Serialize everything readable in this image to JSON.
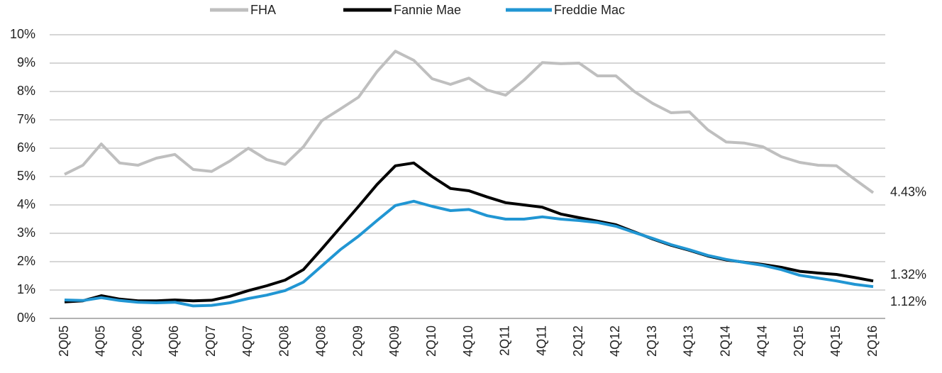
{
  "chart_data": {
    "type": "line",
    "categories": [
      "2Q05",
      null,
      "4Q05",
      null,
      "2Q06",
      null,
      "4Q06",
      null,
      "2Q07",
      null,
      "4Q07",
      null,
      "2Q08",
      null,
      "4Q08",
      null,
      "2Q09",
      null,
      "4Q09",
      null,
      "2Q10",
      null,
      "4Q10",
      null,
      "2Q11",
      null,
      "4Q11",
      null,
      "2Q12",
      null,
      "4Q12",
      null,
      "2Q13",
      null,
      "4Q13",
      null,
      "2Q14",
      null,
      "4Q14",
      null,
      "2Q15",
      null,
      "4Q15",
      null,
      "2Q16"
    ],
    "series": [
      {
        "name": "FHA",
        "color": "#bfbfbf",
        "values": [
          5.08,
          5.4,
          6.15,
          5.48,
          5.4,
          5.65,
          5.78,
          5.25,
          5.18,
          5.55,
          6.0,
          5.6,
          5.43,
          6.05,
          6.97,
          7.38,
          7.8,
          8.7,
          9.42,
          9.1,
          8.45,
          8.25,
          8.47,
          8.05,
          7.87,
          8.4,
          9.02,
          8.98,
          9.0,
          8.55,
          8.55,
          8.0,
          7.58,
          7.25,
          7.28,
          6.65,
          6.22,
          6.18,
          6.05,
          5.7,
          5.5,
          5.4,
          5.38,
          4.9,
          4.43
        ],
        "value_labels": [
          null,
          null,
          null,
          null,
          null,
          null,
          null,
          null,
          null,
          null,
          null,
          null,
          null,
          null,
          null,
          null,
          null,
          null,
          null,
          null,
          null,
          null,
          null,
          null,
          null,
          null,
          null,
          null,
          null,
          null,
          null,
          null,
          null,
          null,
          null,
          null,
          null,
          null,
          null,
          null,
          null,
          null,
          null,
          null,
          "4.43%"
        ]
      },
      {
        "name": "Fannie Mae",
        "color": "#000000",
        "values": [
          0.58,
          0.62,
          0.8,
          0.68,
          0.62,
          0.62,
          0.65,
          0.62,
          0.64,
          0.78,
          0.98,
          1.15,
          1.35,
          1.72,
          2.45,
          3.2,
          3.95,
          4.72,
          5.38,
          5.48,
          5.0,
          4.58,
          4.5,
          4.28,
          4.08,
          4.0,
          3.92,
          3.68,
          3.55,
          3.43,
          3.3,
          3.05,
          2.8,
          2.58,
          2.4,
          2.2,
          2.06,
          1.98,
          1.9,
          1.8,
          1.66,
          1.6,
          1.55,
          1.44,
          1.32
        ],
        "value_labels": [
          null,
          null,
          null,
          null,
          null,
          null,
          null,
          null,
          null,
          null,
          null,
          null,
          null,
          null,
          null,
          null,
          null,
          null,
          null,
          null,
          null,
          null,
          null,
          null,
          null,
          null,
          null,
          null,
          null,
          null,
          null,
          null,
          null,
          null,
          null,
          null,
          null,
          null,
          null,
          null,
          null,
          null,
          null,
          null,
          "1.32%"
        ]
      },
      {
        "name": "Freddie Mac",
        "color": "#2196d3",
        "values": [
          0.65,
          0.63,
          0.73,
          0.63,
          0.57,
          0.55,
          0.57,
          0.44,
          0.46,
          0.55,
          0.7,
          0.82,
          0.98,
          1.28,
          1.85,
          2.42,
          2.9,
          3.45,
          3.98,
          4.13,
          3.95,
          3.8,
          3.84,
          3.62,
          3.5,
          3.5,
          3.58,
          3.5,
          3.45,
          3.38,
          3.25,
          3.03,
          2.82,
          2.6,
          2.42,
          2.22,
          2.08,
          1.97,
          1.87,
          1.72,
          1.52,
          1.42,
          1.32,
          1.2,
          1.12
        ],
        "value_labels": [
          null,
          null,
          null,
          null,
          null,
          null,
          null,
          null,
          null,
          null,
          null,
          null,
          null,
          null,
          null,
          null,
          null,
          null,
          null,
          null,
          null,
          null,
          null,
          null,
          null,
          null,
          null,
          null,
          null,
          null,
          null,
          null,
          null,
          null,
          null,
          null,
          null,
          null,
          null,
          null,
          null,
          null,
          null,
          null,
          "1.12%"
        ]
      }
    ],
    "ylim": [
      0,
      10
    ],
    "yticks": [
      {
        "value": 0,
        "label": "0%"
      },
      {
        "value": 1,
        "label": "1%"
      },
      {
        "value": 2,
        "label": "2%"
      },
      {
        "value": 3,
        "label": "3%"
      },
      {
        "value": 4,
        "label": "4%"
      },
      {
        "value": 5,
        "label": "5%"
      },
      {
        "value": 6,
        "label": "6%"
      },
      {
        "value": 7,
        "label": "7%"
      },
      {
        "value": 8,
        "label": "8%"
      },
      {
        "value": 9,
        "label": "9%"
      },
      {
        "value": 10,
        "label": "10%"
      }
    ],
    "grid": true,
    "legend": "top"
  }
}
